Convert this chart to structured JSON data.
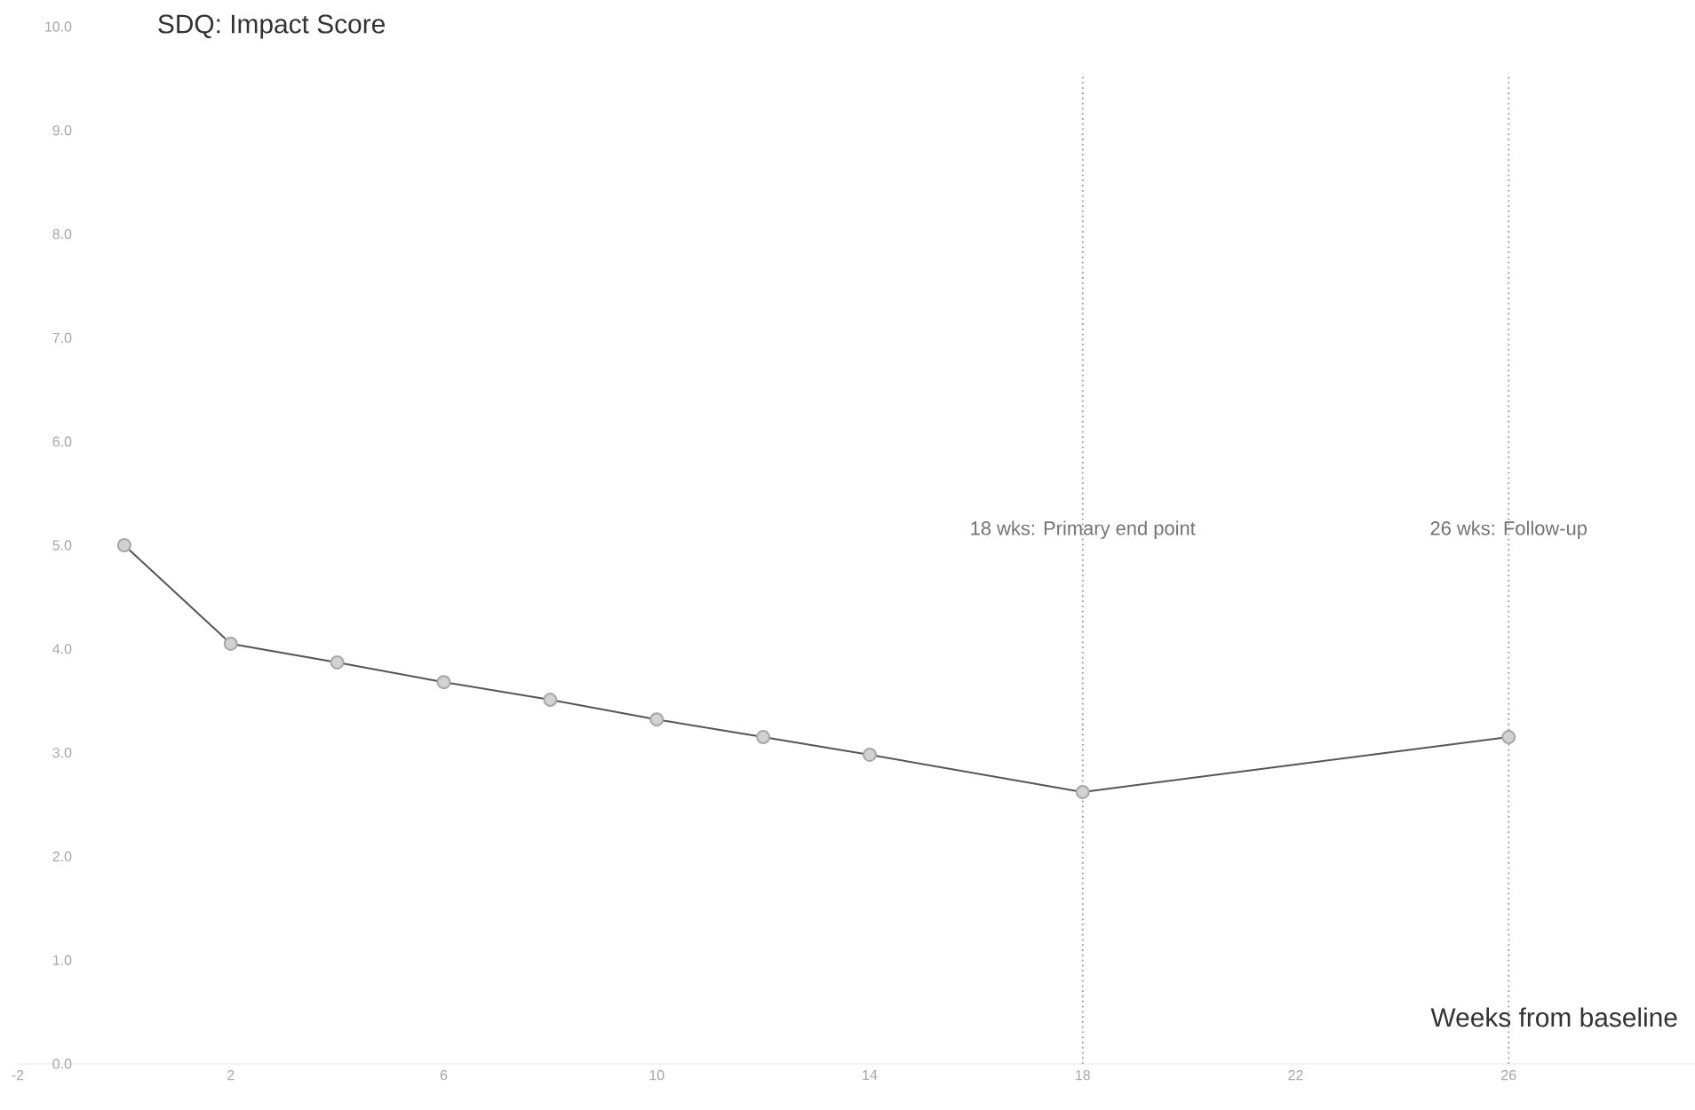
{
  "chart_data": {
    "type": "line",
    "title": "SDQ: Impact Score",
    "xlabel": "Weeks from baseline",
    "x": [
      0,
      2,
      4,
      6,
      8,
      10,
      12,
      14,
      18,
      26
    ],
    "series": [
      {
        "color": "#555555",
        "values": [
          5.0,
          4.05,
          3.87,
          3.68,
          3.51,
          3.32,
          3.15,
          2.98,
          2.62,
          3.15
        ]
      }
    ],
    "marker": "circle",
    "line_style": "solid",
    "grid": false,
    "xlim": [
      -2,
      29.5
    ],
    "xticks": [
      {
        "value": -2,
        "label": "-2"
      },
      2,
      6,
      10,
      14,
      18,
      22,
      26
    ],
    "ylim": [
      0,
      10
    ],
    "yticks": [
      {
        "value": 0,
        "label": "0.0"
      },
      {
        "value": 1,
        "label": "1.0"
      },
      {
        "value": 2,
        "label": "2.0"
      },
      {
        "value": 3,
        "label": "3.0"
      },
      {
        "value": 4,
        "label": "4.0"
      },
      {
        "value": 5,
        "label": "5.0"
      },
      {
        "value": 6,
        "label": "6.0"
      },
      {
        "value": 7,
        "label": "7.0"
      },
      {
        "value": 8,
        "label": "8.0"
      },
      {
        "value": 9,
        "label": "9.0"
      },
      {
        "value": 10,
        "label": "10.0"
      }
    ],
    "ref_lines": [
      {
        "axis": "x",
        "value": 18,
        "label": "18 wks: Primary end point",
        "color": "#999999",
        "line_style": "dotted"
      },
      {
        "axis": "x",
        "value": 26,
        "label": "26 wks: Follow-up",
        "color": "#999999",
        "line_style": "dotted"
      }
    ]
  }
}
